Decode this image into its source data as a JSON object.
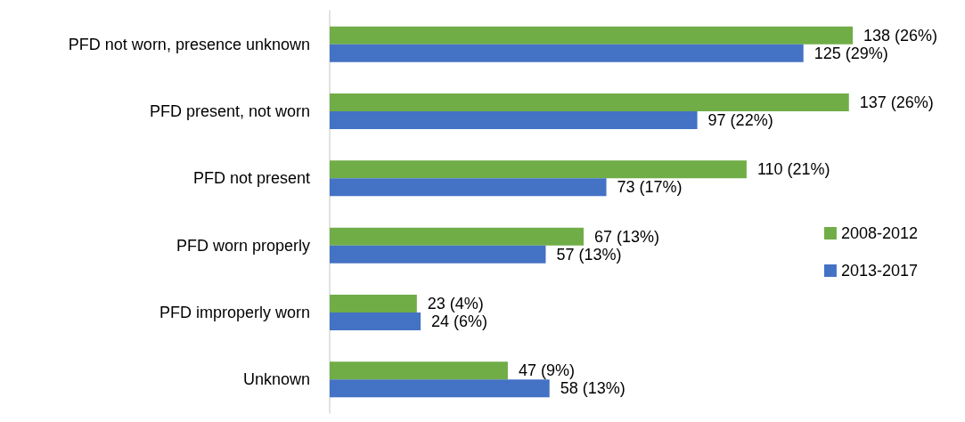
{
  "chart_data": {
    "type": "bar",
    "orientation": "horizontal",
    "categories": [
      "PFD not worn, presence unknown",
      "PFD present, not worn",
      "PFD not present",
      "PFD worn properly",
      "PFD improperly worn",
      "Unknown"
    ],
    "series": [
      {
        "name": "2008-2012",
        "color": "#70ad47",
        "values": [
          138,
          137,
          110,
          67,
          23,
          47
        ],
        "value_labels": [
          "138 (26%)",
          "137 (26%)",
          "110 (21%)",
          "67 (13%)",
          "23 (4%)",
          "47 (9%)"
        ]
      },
      {
        "name": "2013-2017",
        "color": "#4472c4",
        "values": [
          125,
          97,
          73,
          57,
          24,
          58
        ],
        "value_labels": [
          "125 (29%)",
          "97 (22%)",
          "73 (17%)",
          "57 (13%)",
          "24 (6%)",
          "58 (13%)"
        ]
      }
    ],
    "legend": "right",
    "grid": false,
    "tick_labels": "y"
  }
}
